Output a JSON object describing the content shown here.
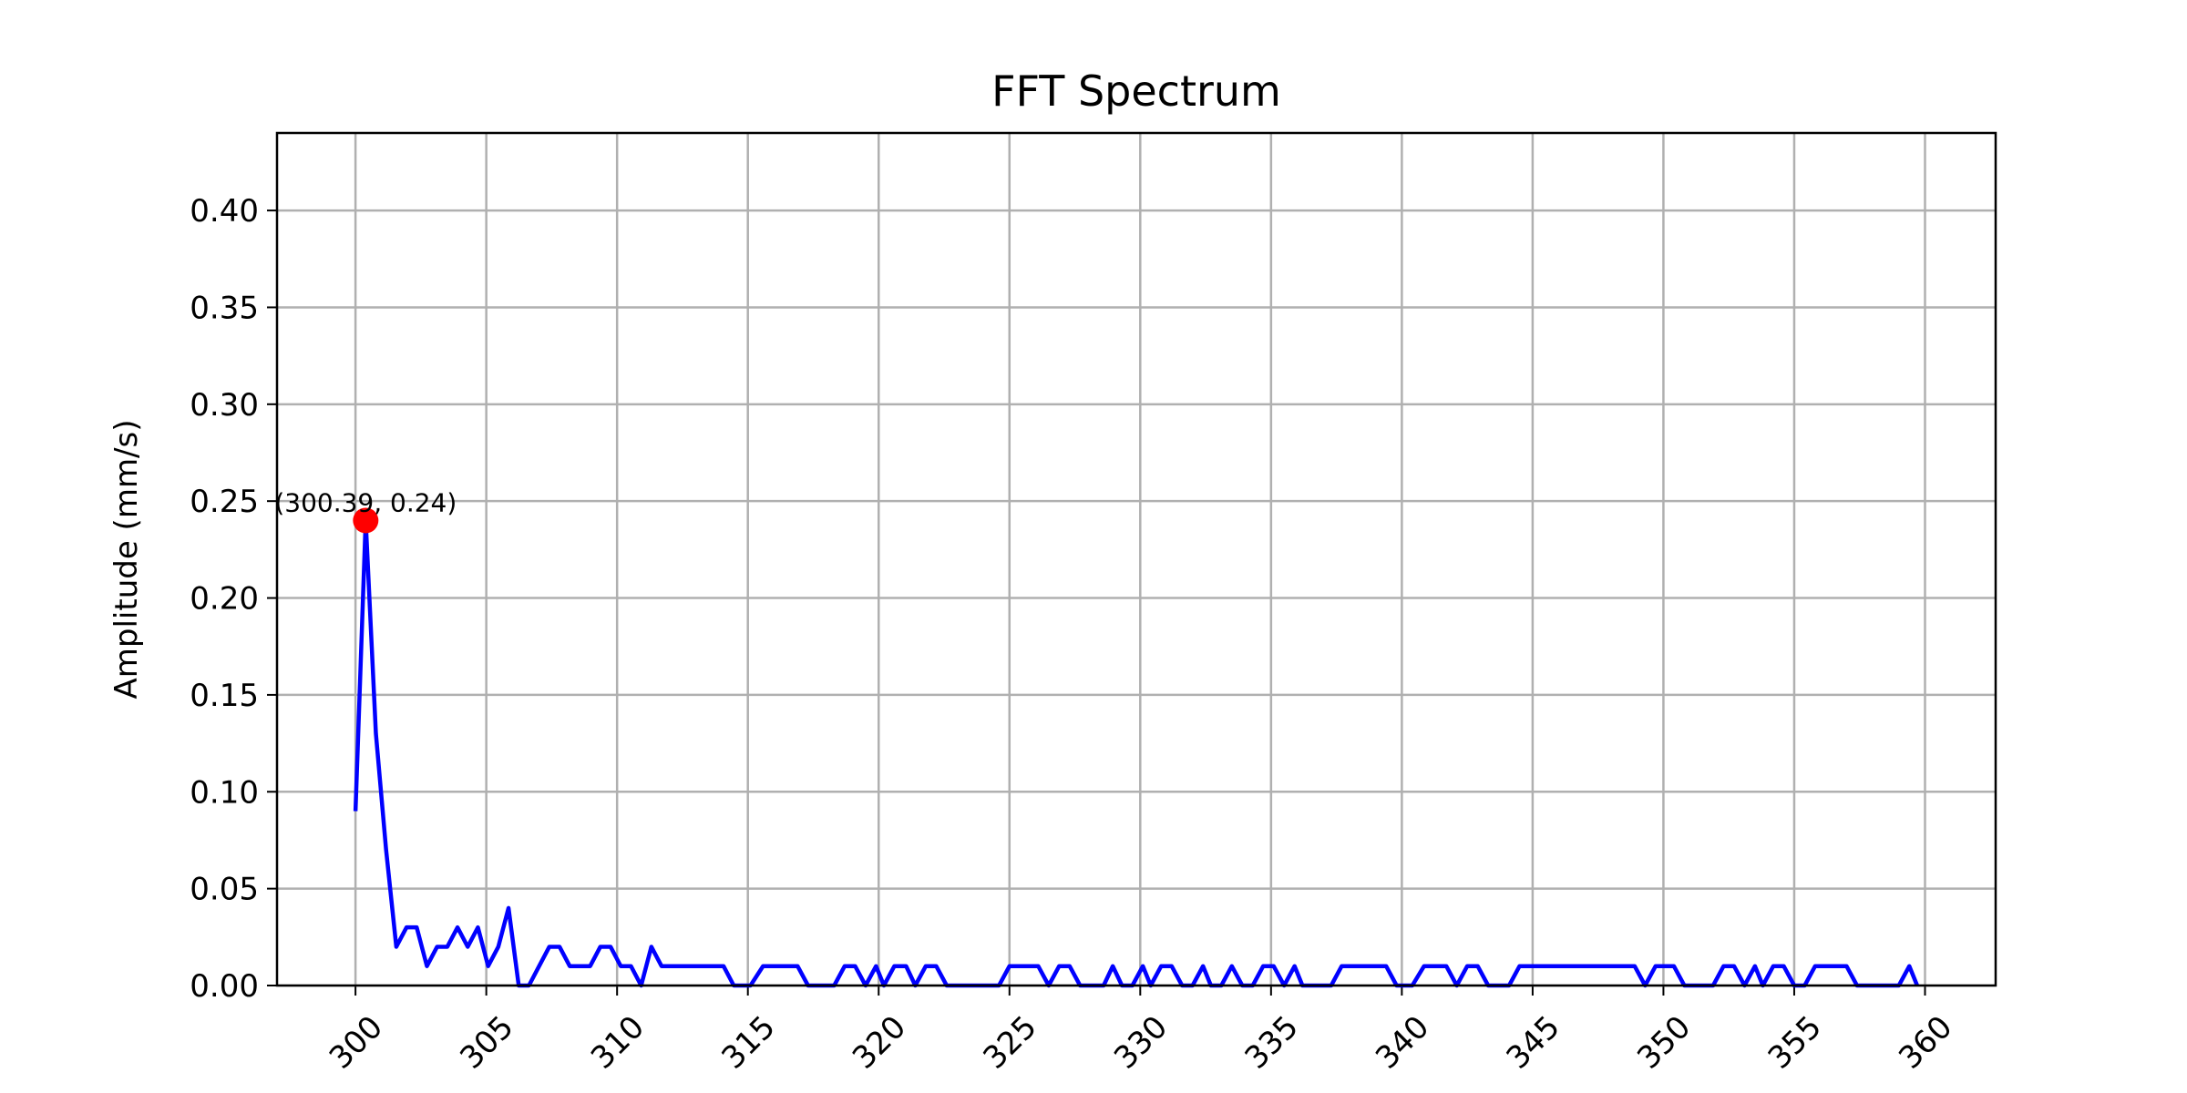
{
  "chart_data": {
    "type": "line",
    "title": "FFT Spectrum",
    "y_label": "Amplitude (mm/s)",
    "series": [
      {
        "color": "#0000ff",
        "x": [
          300,
          300.39,
          300.78,
          301.17,
          301.56,
          301.95,
          302.34,
          302.73,
          303.12,
          303.51,
          303.9,
          304.29,
          304.68,
          305.07,
          305.46,
          305.85,
          306.24,
          306.63,
          307.02,
          307.41,
          307.8,
          308.19,
          308.58,
          308.97,
          309.36,
          309.75,
          310.14,
          310.53,
          310.92,
          311.31,
          311.7,
          314.07,
          314.46,
          315.1,
          315.58,
          316.9,
          317.3,
          318.3,
          318.7,
          319.1,
          319.5,
          319.9,
          320.2,
          320.6,
          321.05,
          321.4,
          321.8,
          322.2,
          322.6,
          324.6,
          325.0,
          326.1,
          326.5,
          326.9,
          327.3,
          327.7,
          328.6,
          328.95,
          329.3,
          329.7,
          330.1,
          330.4,
          330.8,
          331.2,
          331.6,
          332.0,
          332.4,
          332.7,
          333.1,
          333.5,
          333.9,
          334.3,
          334.7,
          335.1,
          335.5,
          335.9,
          336.2,
          337.3,
          337.7,
          339.4,
          339.8,
          340.4,
          340.85,
          341.7,
          342.1,
          342.5,
          342.9,
          343.3,
          344.1,
          344.5,
          348.9,
          349.3,
          349.7,
          350.4,
          350.8,
          351.9,
          352.3,
          352.7,
          353.1,
          353.5,
          353.8,
          354.2,
          354.6,
          355.0,
          355.4,
          355.8,
          357.0,
          357.4,
          359.0,
          359.4,
          359.7
        ],
        "values": [
          0.09,
          0.24,
          0.13,
          0.07,
          0.02,
          0.03,
          0.03,
          0.01,
          0.02,
          0.02,
          0.03,
          0.02,
          0.03,
          0.01,
          0.02,
          0.04,
          0,
          0,
          0.01,
          0.02,
          0.02,
          0.01,
          0.01,
          0.01,
          0.02,
          0.02,
          0.01,
          0.01,
          0,
          0.02,
          0.01,
          0.01,
          0,
          0,
          0.01,
          0.01,
          0,
          0,
          0.01,
          0.01,
          0,
          0.01,
          0,
          0.01,
          0.01,
          0,
          0.01,
          0.01,
          0,
          0,
          0.01,
          0.01,
          0,
          0.01,
          0.01,
          0,
          0,
          0.01,
          0,
          0,
          0.01,
          0,
          0.01,
          0.01,
          0,
          0,
          0.01,
          0,
          0,
          0.01,
          0,
          0,
          0.01,
          0.01,
          0,
          0.01,
          0,
          0,
          0.01,
          0.01,
          0,
          0,
          0.01,
          0.01,
          0,
          0.01,
          0.01,
          0,
          0,
          0.01,
          0.01,
          0,
          0.01,
          0.01,
          0,
          0,
          0.01,
          0.01,
          0,
          0.01,
          0,
          0.01,
          0.01,
          0,
          0,
          0.01,
          0.01,
          0,
          0,
          0.01,
          0
        ]
      }
    ],
    "peak": {
      "x": 300.39,
      "y": 0.24,
      "label": "(300.39, 0.24)",
      "color": "#ff0000"
    },
    "xlim": [
      297.0,
      362.7
    ],
    "ylim": [
      0,
      0.44
    ],
    "xticks": [
      300,
      305,
      310,
      315,
      320,
      325,
      330,
      335,
      340,
      345,
      350,
      355,
      360
    ],
    "yticks": [
      {
        "value": 0,
        "label": "0.00"
      },
      {
        "value": 0.05,
        "label": "0.05"
      },
      {
        "value": 0.1,
        "label": "0.10"
      },
      {
        "value": 0.15,
        "label": "0.15"
      },
      {
        "value": 0.2,
        "label": "0.20"
      },
      {
        "value": 0.25,
        "label": "0.25"
      },
      {
        "value": 0.3,
        "label": "0.30"
      },
      {
        "value": 0.35,
        "label": "0.35"
      },
      {
        "value": 0.4,
        "label": "0.40"
      }
    ],
    "grid": true
  }
}
